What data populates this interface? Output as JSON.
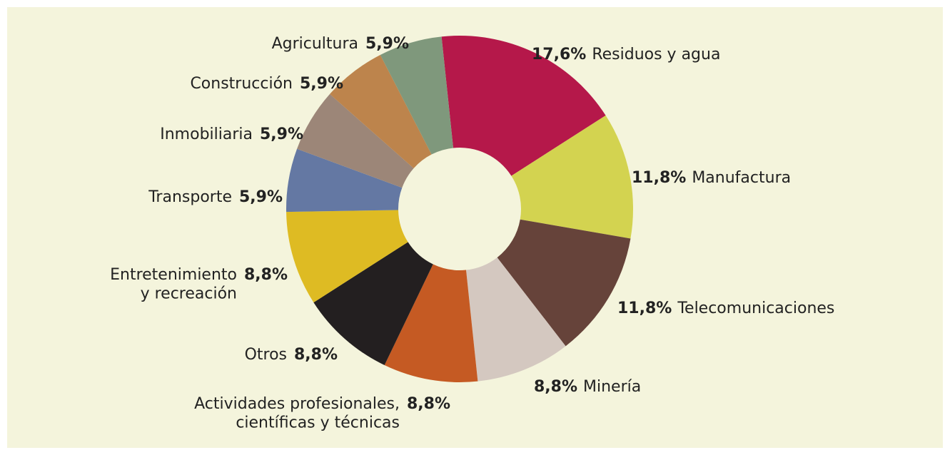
{
  "chart_data": {
    "type": "donut",
    "categories": [
      "Residuos y agua",
      "Manufactura",
      "Telecomunicaciones",
      "Minería",
      "Actividades profesionales,\ncientíficas y técnicas",
      "Otros",
      "Entretenimiento\ny recreación",
      "Transporte",
      "Inmobiliaria",
      "Construcción",
      "Agricultura"
    ],
    "values": [
      17.6,
      11.8,
      11.8,
      8.8,
      8.8,
      8.8,
      8.8,
      5.9,
      5.9,
      5.9,
      5.9
    ],
    "value_labels": [
      "17,6%",
      "11,8%",
      "11,8%",
      "8,8%",
      "8,8%",
      "8,8%",
      "8,8%",
      "5,9%",
      "5,9%",
      "5,9%",
      "5,9%"
    ],
    "colors": [
      "#b5184a",
      "#d3d350",
      "#66433a",
      "#d4c8c0",
      "#c55a23",
      "#231f20",
      "#debb23",
      "#6478a3",
      "#9c8678",
      "#bd844c",
      "#7f987c"
    ],
    "label_colors": [
      "#b5184a",
      "#b4b43a",
      "#66433a",
      "#8d8783",
      "#c55a23",
      "#231f20",
      "#d8b420",
      "#5a70a3",
      "#9c8678",
      "#bd844c",
      "#7f987c"
    ]
  }
}
